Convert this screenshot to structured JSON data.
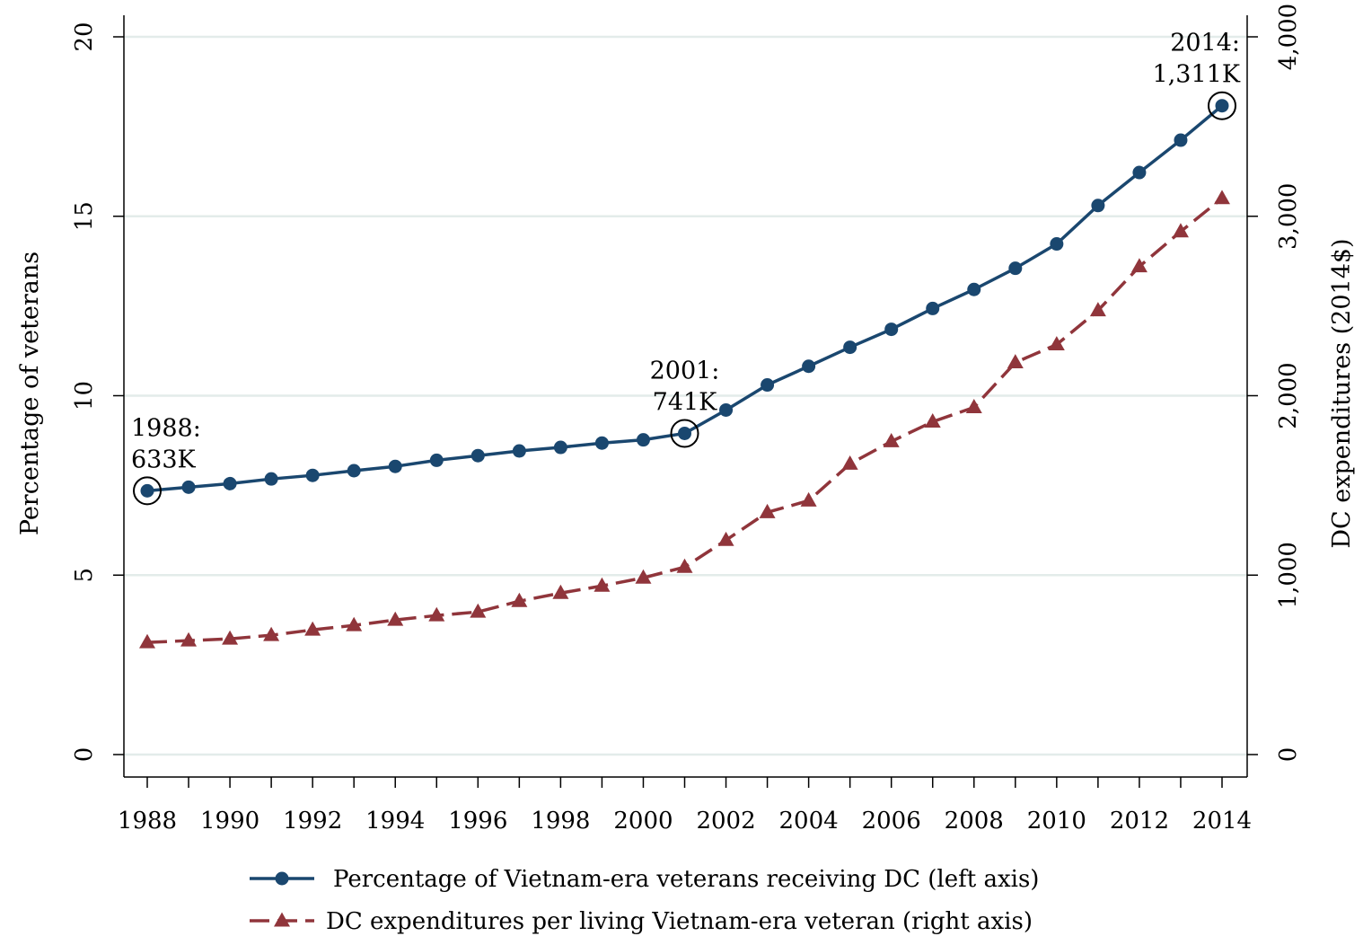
{
  "chart_data": {
    "type": "line",
    "x": [
      1988,
      1989,
      1990,
      1991,
      1992,
      1993,
      1994,
      1995,
      1996,
      1997,
      1998,
      1999,
      2000,
      2001,
      2002,
      2003,
      2004,
      2005,
      2006,
      2007,
      2008,
      2009,
      2010,
      2011,
      2012,
      2013,
      2014
    ],
    "x_ticks": [
      "1988",
      "1990",
      "1992",
      "1994",
      "1996",
      "1998",
      "2000",
      "2002",
      "2004",
      "2006",
      "2008",
      "2010",
      "2012",
      "2014"
    ],
    "xlim": [
      1988,
      2014
    ],
    "ylabel": "Percentage of veterans",
    "ylim": [
      0,
      20
    ],
    "y_ticks": [
      "0",
      "5",
      "10",
      "15",
      "20"
    ],
    "y2label": "DC expenditures (2014$)",
    "y2lim": [
      0,
      4000
    ],
    "y2_ticks": [
      "0",
      "1,000",
      "2,000",
      "3,000",
      "4,000"
    ],
    "grid": "horizontal",
    "legend_position": "bottom",
    "series": [
      {
        "name": "Percentage of Vietnam-era veterans receiving DC (left axis)",
        "axis": "left",
        "color": "#1a476f",
        "marker": "circle",
        "line": "solid",
        "values": [
          7.35,
          7.45,
          7.55,
          7.68,
          7.78,
          7.91,
          8.03,
          8.2,
          8.33,
          8.46,
          8.56,
          8.68,
          8.77,
          8.95,
          9.6,
          10.3,
          10.82,
          11.35,
          11.85,
          12.43,
          12.96,
          13.55,
          14.23,
          15.3,
          16.22,
          17.12,
          18.08
        ]
      },
      {
        "name": "DC expenditures per living Vietnam-era veteran (right axis)",
        "axis": "right",
        "color": "#90353b",
        "marker": "triangle",
        "line": "dashed",
        "values": [
          625,
          635,
          645,
          665,
          695,
          720,
          750,
          775,
          795,
          855,
          900,
          940,
          985,
          1045,
          1195,
          1350,
          1415,
          1620,
          1745,
          1855,
          1935,
          2185,
          2285,
          2475,
          2720,
          2915,
          3100
        ]
      }
    ],
    "annotations": [
      {
        "x": 1988,
        "series": 0,
        "lines": [
          "1988:",
          "633K"
        ]
      },
      {
        "x": 2001,
        "series": 0,
        "lines": [
          "2001:",
          "741K"
        ]
      },
      {
        "x": 2014,
        "series": 0,
        "lines": [
          "2014:",
          "1,311K"
        ]
      }
    ]
  }
}
